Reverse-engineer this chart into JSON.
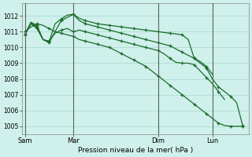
{
  "background_color": "#cff0eb",
  "grid_color": "#a8d8d0",
  "line_color": "#1a6b2a",
  "xlabel": "Pression niveau de la mer( hPa )",
  "ylim": [
    1004.5,
    1012.8
  ],
  "yticks": [
    1005,
    1006,
    1007,
    1008,
    1009,
    1010,
    1011,
    1012
  ],
  "xtick_labels": [
    "Sam",
    "Mar",
    "Dim",
    "Lun"
  ],
  "xtick_positions": [
    0,
    8,
    22,
    31
  ],
  "vline_positions": [
    0,
    8,
    22,
    31
  ],
  "series": [
    {
      "x": [
        0,
        1,
        2,
        3,
        4,
        5,
        6,
        7,
        8,
        9,
        10,
        11,
        12,
        13,
        14,
        15,
        16,
        17,
        18,
        19,
        20,
        21,
        22,
        23,
        24,
        25,
        26,
        27,
        28,
        29,
        30,
        31,
        32,
        33,
        34,
        35,
        36
      ],
      "y": [
        1011.0,
        1011.3,
        1011.5,
        1011.4,
        1011.2,
        1011.0,
        1010.9,
        1010.8,
        1010.7,
        1010.5,
        1010.4,
        1010.3,
        1010.2,
        1010.1,
        1010.0,
        1009.8,
        1009.6,
        1009.4,
        1009.2,
        1009.0,
        1008.8,
        1008.5,
        1008.2,
        1007.9,
        1007.6,
        1007.3,
        1007.0,
        1006.7,
        1006.4,
        1006.1,
        1005.8,
        1005.5,
        1005.2,
        1005.05,
        1005.0,
        1005.0,
        1005.0
      ]
    },
    {
      "x": [
        0,
        1,
        2,
        3,
        4,
        5,
        6,
        7,
        8,
        9,
        10,
        11,
        12,
        13,
        14,
        15,
        16,
        17,
        18,
        19,
        20,
        21,
        22,
        23,
        24,
        25,
        26,
        27,
        28,
        29,
        30,
        31,
        32,
        33
      ],
      "y": [
        1010.8,
        1011.5,
        1011.2,
        1010.5,
        1010.4,
        1010.9,
        1011.1,
        1011.2,
        1011.0,
        1011.1,
        1011.0,
        1010.9,
        1010.8,
        1010.7,
        1010.6,
        1010.5,
        1010.4,
        1010.3,
        1010.2,
        1010.1,
        1010.0,
        1009.9,
        1009.8,
        1009.6,
        1009.3,
        1009.05,
        1009.0,
        1009.0,
        1008.9,
        1008.5,
        1008.1,
        1007.7,
        1007.2,
        1006.7
      ]
    },
    {
      "x": [
        0,
        1,
        2,
        3,
        4,
        5,
        6,
        7,
        8,
        9,
        10,
        11,
        12,
        13,
        14,
        15,
        16,
        17,
        18,
        19,
        20,
        21,
        22,
        23,
        24,
        25,
        26,
        27,
        28,
        29,
        30,
        31
      ],
      "y": [
        1010.8,
        1011.55,
        1011.3,
        1010.5,
        1010.35,
        1011.5,
        1011.8,
        1012.05,
        1012.1,
        1011.7,
        1011.5,
        1011.4,
        1011.3,
        1011.2,
        1011.1,
        1011.0,
        1010.9,
        1010.8,
        1010.7,
        1010.6,
        1010.5,
        1010.4,
        1010.3,
        1010.2,
        1010.1,
        1009.9,
        1009.7,
        1009.5,
        1009.3,
        1009.1,
        1008.8,
        1008.3
      ]
    },
    {
      "x": [
        0,
        1,
        2,
        3,
        4,
        5,
        6,
        7,
        8,
        9,
        10,
        11,
        12,
        13,
        14,
        15,
        16,
        17,
        18,
        19,
        20,
        21,
        22,
        23,
        24,
        25,
        26,
        27,
        28,
        29,
        30,
        31,
        32,
        33,
        34,
        35,
        36
      ],
      "y": [
        1010.8,
        1011.6,
        1011.4,
        1010.5,
        1010.3,
        1011.0,
        1011.7,
        1011.9,
        1012.1,
        1011.85,
        1011.7,
        1011.6,
        1011.5,
        1011.45,
        1011.4,
        1011.35,
        1011.3,
        1011.25,
        1011.2,
        1011.15,
        1011.1,
        1011.05,
        1011.0,
        1010.95,
        1010.9,
        1010.85,
        1010.8,
        1010.5,
        1009.3,
        1009.0,
        1008.7,
        1008.0,
        1007.5,
        1007.2,
        1006.9,
        1006.5,
        1005.05
      ]
    }
  ]
}
